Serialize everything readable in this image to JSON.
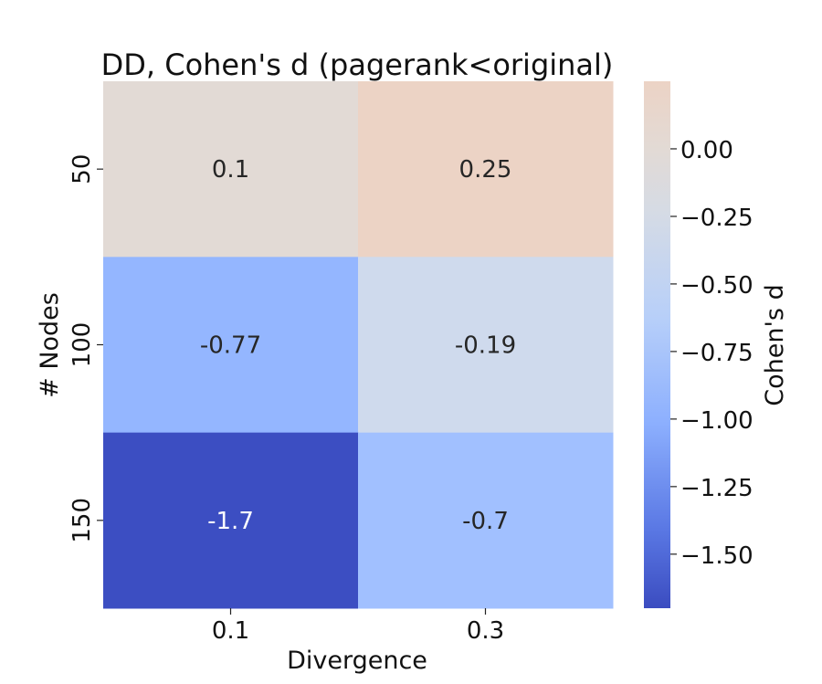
{
  "chart_data": {
    "type": "heatmap",
    "title": "DD, Cohen's d (pagerank<original)",
    "xlabel": "Divergence",
    "ylabel": "# Nodes",
    "x_categories": [
      "0.1",
      "0.3"
    ],
    "y_categories": [
      "50",
      "100",
      "150"
    ],
    "values": [
      [
        0.1,
        0.25
      ],
      [
        -0.77,
        -0.19
      ],
      [
        -1.7,
        -0.7
      ]
    ],
    "annotations": [
      [
        "0.1",
        "0.25"
      ],
      [
        "-0.77",
        "-0.19"
      ],
      [
        "-1.7",
        "-0.7"
      ]
    ],
    "colormap": "coolwarm",
    "vmin": -1.7,
    "vmax": 0.25,
    "colorbar": {
      "label": "Cohen's d",
      "ticks": [
        0.0,
        -0.25,
        -0.5,
        -0.75,
        -1.0,
        -1.25,
        -1.5
      ],
      "tick_labels": [
        "0.00",
        "−0.25",
        "−0.50",
        "−0.75",
        "−1.00",
        "−1.25",
        "−1.50"
      ]
    },
    "cell_colors": [
      [
        "#e2dad5",
        "#ecd3c5"
      ],
      [
        "#94b6ff",
        "#cfdaed"
      ],
      [
        "#3c4ec2",
        "#a1c0ff"
      ]
    ]
  }
}
